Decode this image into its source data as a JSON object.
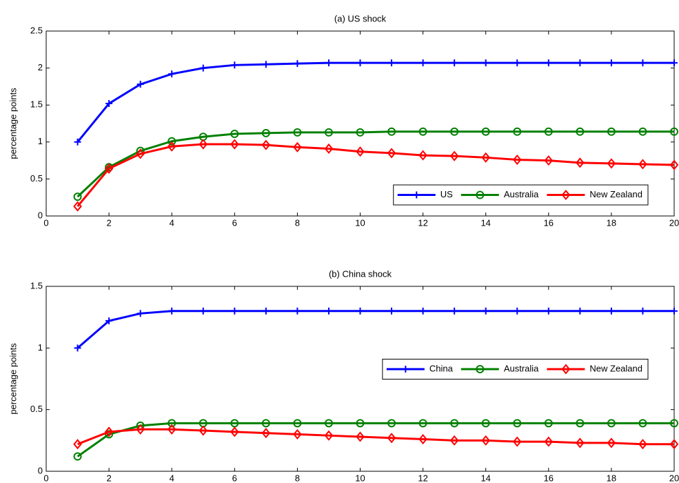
{
  "chart_data": [
    {
      "type": "line",
      "title": "(a) US shock",
      "y_label": "percentage points",
      "x": [
        1,
        2,
        3,
        4,
        5,
        6,
        7,
        8,
        9,
        10,
        11,
        12,
        13,
        14,
        15,
        16,
        17,
        18,
        19,
        20
      ],
      "xlim": [
        0,
        20
      ],
      "xticks": [
        0,
        2,
        4,
        6,
        8,
        10,
        12,
        14,
        16,
        18,
        20
      ],
      "ylim": [
        0,
        2.5
      ],
      "yticks": [
        0,
        0.5,
        1,
        1.5,
        2,
        2.5
      ],
      "legend_loc": "lower right",
      "series": [
        {
          "name": "US",
          "color": "#0000ff",
          "marker": "plus",
          "values": [
            1.0,
            1.52,
            1.78,
            1.92,
            2.0,
            2.04,
            2.05,
            2.06,
            2.07,
            2.07,
            2.07,
            2.07,
            2.07,
            2.07,
            2.07,
            2.07,
            2.07,
            2.07,
            2.07,
            2.07
          ]
        },
        {
          "name": "Australia",
          "color": "#008000",
          "marker": "circle",
          "values": [
            0.26,
            0.66,
            0.88,
            1.01,
            1.07,
            1.11,
            1.12,
            1.13,
            1.13,
            1.13,
            1.14,
            1.14,
            1.14,
            1.14,
            1.14,
            1.14,
            1.14,
            1.14,
            1.14,
            1.14
          ]
        },
        {
          "name": "New Zealand",
          "color": "#ff0000",
          "marker": "diamond",
          "values": [
            0.13,
            0.64,
            0.84,
            0.94,
            0.97,
            0.97,
            0.96,
            0.93,
            0.91,
            0.87,
            0.85,
            0.82,
            0.81,
            0.79,
            0.76,
            0.75,
            0.72,
            0.71,
            0.7,
            0.69
          ]
        }
      ]
    },
    {
      "type": "line",
      "title": "(b) China shock",
      "y_label": "percentage points",
      "x": [
        1,
        2,
        3,
        4,
        5,
        6,
        7,
        8,
        9,
        10,
        11,
        12,
        13,
        14,
        15,
        16,
        17,
        18,
        19,
        20
      ],
      "xlim": [
        0,
        20
      ],
      "xticks": [
        0,
        2,
        4,
        6,
        8,
        10,
        12,
        14,
        16,
        18,
        20
      ],
      "ylim": [
        0,
        1.5
      ],
      "yticks": [
        0,
        0.5,
        1,
        1.5
      ],
      "legend_loc": "right",
      "series": [
        {
          "name": "China",
          "color": "#0000ff",
          "marker": "plus",
          "values": [
            1.0,
            1.22,
            1.28,
            1.3,
            1.3,
            1.3,
            1.3,
            1.3,
            1.3,
            1.3,
            1.3,
            1.3,
            1.3,
            1.3,
            1.3,
            1.3,
            1.3,
            1.3,
            1.3,
            1.3
          ]
        },
        {
          "name": "Australia",
          "color": "#008000",
          "marker": "circle",
          "values": [
            0.12,
            0.3,
            0.37,
            0.39,
            0.39,
            0.39,
            0.39,
            0.39,
            0.39,
            0.39,
            0.39,
            0.39,
            0.39,
            0.39,
            0.39,
            0.39,
            0.39,
            0.39,
            0.39,
            0.39
          ]
        },
        {
          "name": "New Zealand",
          "color": "#ff0000",
          "marker": "diamond",
          "values": [
            0.22,
            0.32,
            0.34,
            0.34,
            0.33,
            0.32,
            0.31,
            0.3,
            0.29,
            0.28,
            0.27,
            0.26,
            0.25,
            0.25,
            0.24,
            0.24,
            0.23,
            0.23,
            0.22,
            0.22
          ]
        }
      ]
    }
  ]
}
